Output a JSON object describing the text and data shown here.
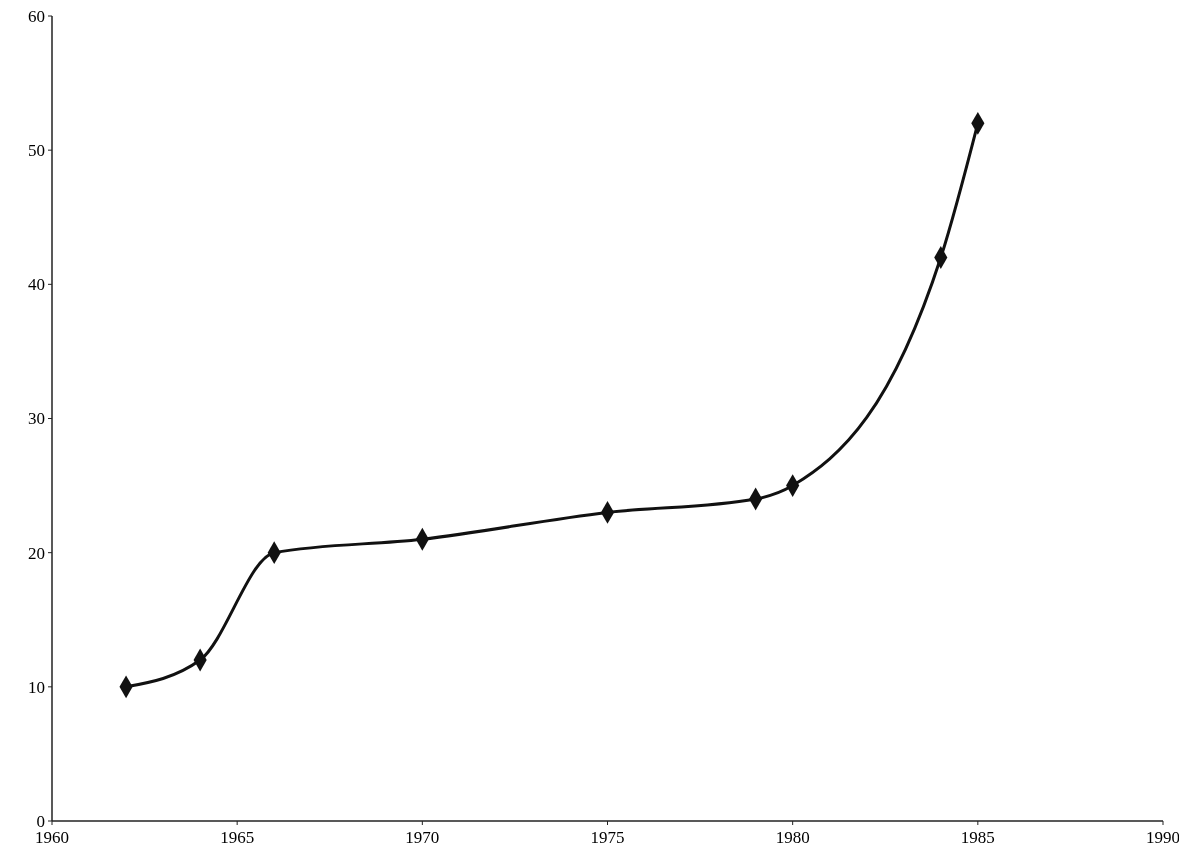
{
  "chart_data": {
    "type": "line",
    "x": [
      1962,
      1964,
      1966,
      1970,
      1975,
      1979,
      1980,
      1984,
      1985
    ],
    "series": [
      {
        "color": "#111111",
        "values": [
          10,
          12,
          20,
          21,
          23,
          24,
          25,
          42,
          52
        ]
      }
    ],
    "xlim": [
      1960,
      1990
    ],
    "xticks": [
      1960,
      1965,
      1970,
      1975,
      1980,
      1985,
      1990
    ],
    "ylim": [
      0,
      60
    ],
    "yticks": [
      0,
      10,
      20,
      30,
      40,
      50,
      60
    ],
    "marker": "diamond",
    "line_style": "solid",
    "grid": false
  }
}
